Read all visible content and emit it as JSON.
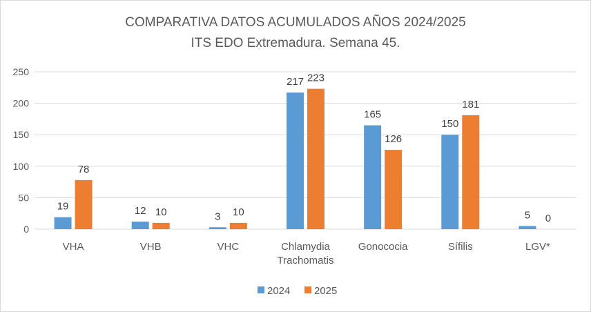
{
  "chart_data": {
    "type": "bar",
    "title": "COMPARATIVA DATOS ACUMULADOS AÑOS 2024/2025",
    "subtitle": "ITS EDO Extremadura. Semana 45.",
    "categories": [
      [
        "VHA"
      ],
      [
        "VHB"
      ],
      [
        "VHC"
      ],
      [
        "Chlamydia",
        "Trachomatis"
      ],
      [
        "Gonococia"
      ],
      [
        "Sífilis"
      ],
      [
        "LGV*"
      ]
    ],
    "series": [
      {
        "name": "2024",
        "color": "#5b9bd5",
        "values": [
          19,
          12,
          3,
          217,
          165,
          150,
          5
        ]
      },
      {
        "name": "2025",
        "color": "#ed7d31",
        "values": [
          78,
          10,
          10,
          223,
          126,
          181,
          0
        ]
      }
    ],
    "ylim": [
      0,
      250
    ],
    "yticks": [
      0,
      50,
      100,
      150,
      200,
      250
    ],
    "grid": true,
    "legend": "bottom",
    "data_labels": true,
    "gridline_color": "#d9d9d9"
  }
}
